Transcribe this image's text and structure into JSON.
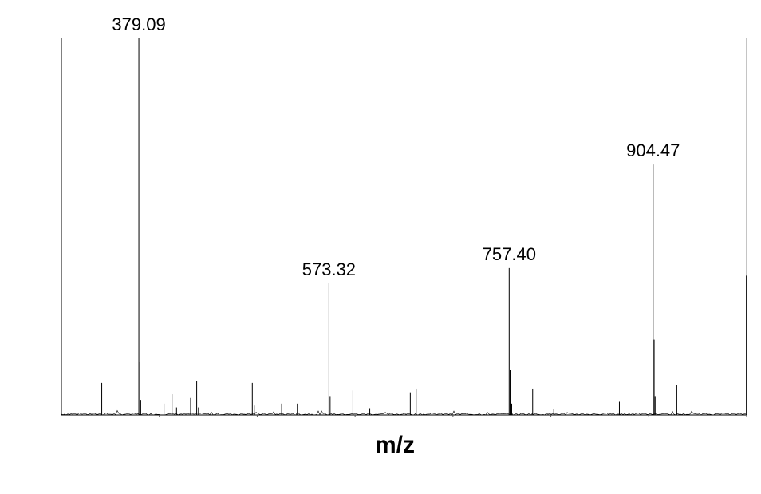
{
  "chart_data": {
    "type": "line",
    "xlabel": "m/z",
    "ylabel": "",
    "xlim": [
      300,
      1000
    ],
    "ylim": [
      0,
      100
    ],
    "grid": false,
    "peaks": [
      {
        "mz": 341.2,
        "intensity": 8.5
      },
      {
        "mz": 379.09,
        "intensity": 100
      },
      {
        "mz": 380.2,
        "intensity": 14.2
      },
      {
        "mz": 381.0,
        "intensity": 4.0
      },
      {
        "mz": 404.8,
        "intensity": 3.0
      },
      {
        "mz": 413.0,
        "intensity": 5.5
      },
      {
        "mz": 417.6,
        "intensity": 2.0
      },
      {
        "mz": 432.0,
        "intensity": 4.5
      },
      {
        "mz": 438.2,
        "intensity": 9.0
      },
      {
        "mz": 440.0,
        "intensity": 2.0
      },
      {
        "mz": 495.0,
        "intensity": 8.5
      },
      {
        "mz": 497.0,
        "intensity": 2.5
      },
      {
        "mz": 525.0,
        "intensity": 3.0
      },
      {
        "mz": 541.0,
        "intensity": 3.0
      },
      {
        "mz": 573.32,
        "intensity": 35.0
      },
      {
        "mz": 574.5,
        "intensity": 5.0
      },
      {
        "mz": 597.8,
        "intensity": 6.5
      },
      {
        "mz": 615.0,
        "intensity": 1.8
      },
      {
        "mz": 656.4,
        "intensity": 6.0
      },
      {
        "mz": 662.4,
        "intensity": 7.0
      },
      {
        "mz": 757.4,
        "intensity": 39.0
      },
      {
        "mz": 758.4,
        "intensity": 12.0
      },
      {
        "mz": 760.0,
        "intensity": 3.0
      },
      {
        "mz": 781.4,
        "intensity": 7.0
      },
      {
        "mz": 803.0,
        "intensity": 1.5
      },
      {
        "mz": 870.0,
        "intensity": 3.5
      },
      {
        "mz": 904.47,
        "intensity": 66.5
      },
      {
        "mz": 905.5,
        "intensity": 20.0
      },
      {
        "mz": 906.5,
        "intensity": 5.0
      },
      {
        "mz": 928.6,
        "intensity": 8.0
      },
      {
        "mz": 999.7,
        "intensity": 37.0
      }
    ],
    "labeled_peaks": [
      {
        "mz": 379.09,
        "intensity": 100,
        "label": "379.09"
      },
      {
        "mz": 573.32,
        "intensity": 35.0,
        "label": "573.32"
      },
      {
        "mz": 757.4,
        "intensity": 39.0,
        "label": "757.40"
      },
      {
        "mz": 904.47,
        "intensity": 66.5,
        "label": "904.47"
      }
    ]
  }
}
